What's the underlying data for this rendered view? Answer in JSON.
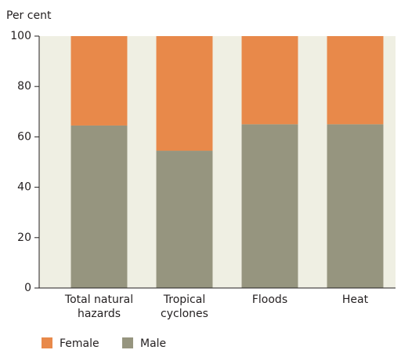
{
  "chart_data": {
    "type": "stacked_bar",
    "y_axis_label": "Per cent",
    "categories": [
      "Total natural hazards",
      "Tropical cyclones",
      "Floods",
      "Heat"
    ],
    "series": [
      {
        "name": "Male",
        "color": "#96957f",
        "values": [
          64.5,
          54.5,
          65,
          65
        ]
      },
      {
        "name": "Female",
        "color": "#e8894a",
        "values": [
          35.5,
          45.5,
          35,
          35
        ]
      }
    ],
    "legend_order": [
      1,
      0
    ],
    "ylim": [
      0,
      100
    ],
    "yticks": [
      0,
      20,
      40,
      60,
      80,
      100
    ],
    "plot_background": "#efefe3"
  }
}
